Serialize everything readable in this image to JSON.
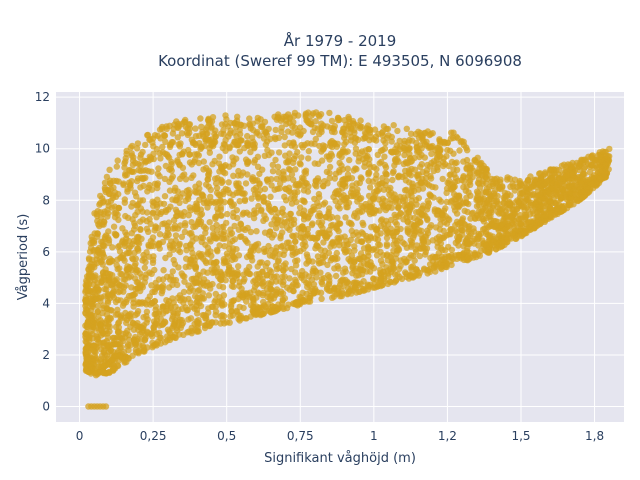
{
  "chart_data": {
    "type": "scatter",
    "title_line1": "År 1979 - 2019",
    "title_line2": "Koordinat (Sweref 99 TM): E 493505, N 6096908",
    "xlabel": "Signifikant våghöjd (m)",
    "ylabel": "Vågperiod (s)",
    "xlim": [
      -0.08,
      1.85
    ],
    "ylim": [
      -0.6,
      12.2
    ],
    "x_ticks": [
      0,
      0.25,
      0.5,
      0.75,
      1,
      1.25,
      1.5,
      1.75
    ],
    "x_tick_labels": [
      "0",
      "0,25",
      "0,5",
      "0,75",
      "1",
      "1,2",
      "1,5",
      "1,8"
    ],
    "y_ticks": [
      0,
      2,
      4,
      6,
      8,
      10,
      12
    ],
    "y_tick_labels": [
      "0",
      "2",
      "4",
      "6",
      "8",
      "10",
      "12"
    ],
    "grid": true,
    "marker_color": "#d4a21f",
    "plot_background": "#e5e5ef",
    "point_envelope": {
      "x": [
        0.02,
        0.05,
        0.1,
        0.15,
        0.2,
        0.25,
        0.3,
        0.4,
        0.5,
        0.6,
        0.7,
        0.8,
        0.9,
        1.0,
        1.1,
        1.2,
        1.3,
        1.4,
        1.5,
        1.6,
        1.7,
        1.8
      ],
      "y_lower": [
        1.4,
        1.2,
        1.3,
        1.6,
        2.0,
        2.3,
        2.5,
        2.9,
        3.2,
        3.5,
        3.8,
        4.1,
        4.3,
        4.6,
        4.9,
        5.2,
        5.6,
        6.0,
        6.6,
        7.3,
        8.0,
        9.0
      ],
      "y_upper": [
        4.8,
        7.5,
        9.2,
        9.8,
        10.4,
        10.8,
        11.0,
        11.2,
        11.3,
        11.2,
        11.4,
        11.5,
        11.3,
        11.0,
        10.9,
        10.7,
        10.6,
        9.0,
        8.8,
        9.2,
        9.6,
        10.0
      ]
    },
    "zero_period_points": {
      "x": [
        0.03,
        0.04,
        0.05,
        0.06,
        0.07,
        0.08,
        0.09
      ],
      "y": [
        0,
        0,
        0,
        0,
        0,
        0,
        0
      ]
    }
  }
}
